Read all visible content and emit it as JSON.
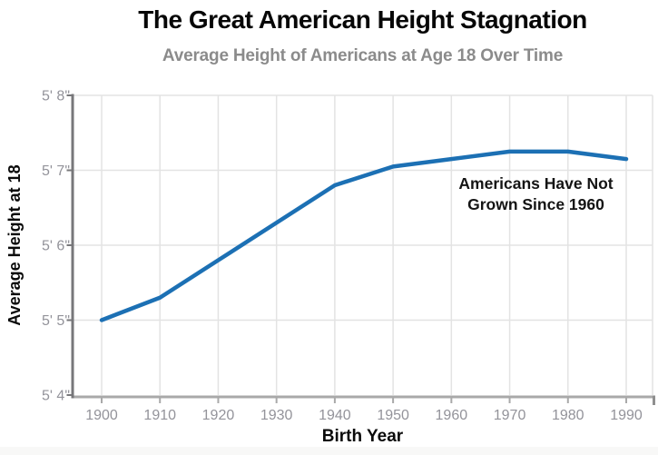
{
  "header": {
    "title": "The Great American Height Stagnation",
    "subtitle": "Average Height of Americans at Age 18 Over Time"
  },
  "annotation": {
    "line1": "Americans Have Not",
    "line2": "Grown Since 1960"
  },
  "axes": {
    "x_label": "Birth Year",
    "y_label": "Average Height at 18"
  },
  "colors": {
    "line": "#1c70b4",
    "title": "#070707",
    "subtitle": "#8b8b8b",
    "tick_label": "#93939a",
    "grid": "#e3e3e3",
    "y_axis": "#77777a",
    "x_axis": "#a9a9a9",
    "annotation": "#141414"
  },
  "chart_data": {
    "type": "line",
    "title": "The Great American Height Stagnation",
    "subtitle": "Average Height of Americans at Age 18 Over Time",
    "xlabel": "Birth Year",
    "ylabel": "Average Height at 18",
    "series": [
      {
        "name": "Average height of Americans at age 18",
        "x": [
          1900,
          1910,
          1920,
          1930,
          1940,
          1950,
          1960,
          1970,
          1980,
          1990
        ],
        "values_inches": [
          65.0,
          65.3,
          65.8,
          66.3,
          66.8,
          67.05,
          67.15,
          67.25,
          67.25,
          67.15
        ]
      }
    ],
    "x_ticks": [
      1900,
      1910,
      1920,
      1930,
      1940,
      1950,
      1960,
      1970,
      1980,
      1990
    ],
    "x_tick_labels": [
      "1900",
      "1910",
      "1920",
      "1930",
      "1940",
      "1950",
      "1960",
      "1970",
      "1980",
      "1990"
    ],
    "y_ticks_inches": [
      64,
      65,
      66,
      67,
      68
    ],
    "y_tick_labels": [
      "5' 4\"",
      "5' 5\"",
      "5' 6\"",
      "5' 7\"",
      "5' 8\""
    ],
    "ylim_inches": [
      64,
      68
    ],
    "xlim": [
      1900,
      1990
    ],
    "grid": true,
    "legend": false,
    "annotation_text": "Americans Have Not Grown Since 1960"
  }
}
